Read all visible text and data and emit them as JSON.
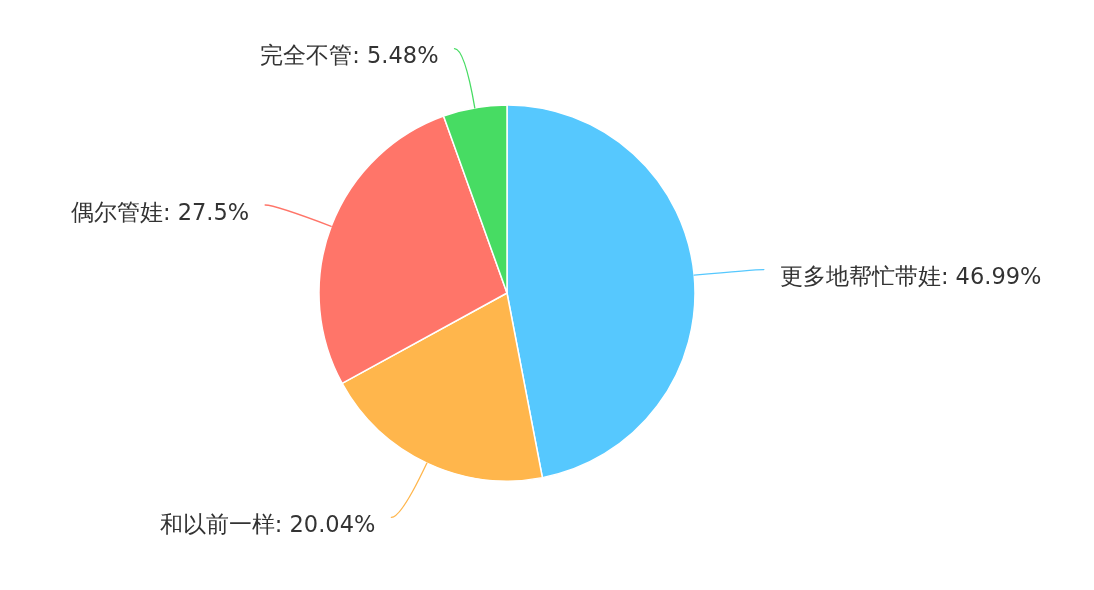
{
  "chart_data": {
    "type": "pie",
    "categories": [
      "更多地帮忙带娃",
      "和以前一样",
      "偶尔管娃",
      "完全不管"
    ],
    "values": [
      46.99,
      20.04,
      27.5,
      5.48
    ],
    "colors": [
      "#56c8fe",
      "#ffb64c",
      "#ff7569",
      "#47dc63"
    ],
    "value_labels": [
      "46.99%",
      "20.04%",
      "27.5%",
      "5.48%"
    ]
  }
}
